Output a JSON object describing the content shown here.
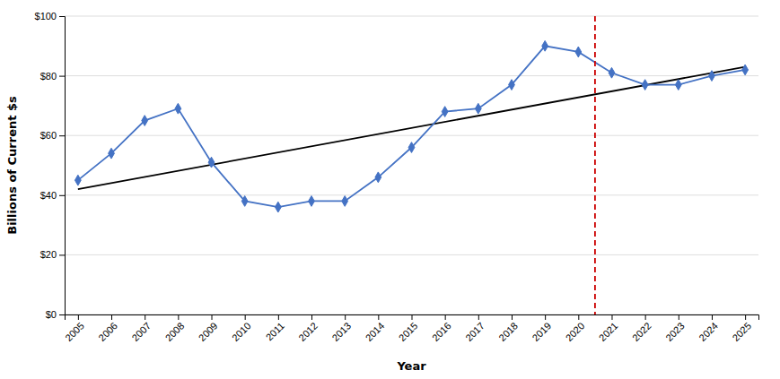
{
  "chart_data": {
    "type": "line",
    "xlabel": "Year",
    "ylabel": "Billions of Current $s",
    "series": [
      {
        "color": "#000000",
        "x": [
          2005,
          2025
        ],
        "values": [
          42,
          83
        ]
      },
      {
        "color": "#4472C4",
        "marker": "diamond",
        "x": [
          2005,
          2006,
          2007,
          2008,
          2009,
          2010,
          2011,
          2012,
          2013,
          2014,
          2015,
          2016,
          2017,
          2018,
          2019,
          2020,
          2021,
          2022,
          2023,
          2024,
          2025
        ],
        "values": [
          45,
          54,
          65,
          69,
          51,
          38,
          36,
          38,
          38,
          46,
          56,
          68,
          69,
          77,
          90,
          88,
          81,
          77,
          77,
          80,
          82
        ]
      }
    ],
    "vlines": [
      {
        "x": 2020.5,
        "color": "#CC0000",
        "line_style": "dashed"
      }
    ],
    "xlim": [
      2004.6,
      2025.4
    ],
    "xticks": [
      2005,
      2006,
      2007,
      2008,
      2009,
      2010,
      2011,
      2012,
      2013,
      2014,
      2015,
      2016,
      2017,
      2018,
      2019,
      2020,
      2021,
      2022,
      2023,
      2024,
      2025
    ],
    "ylim": [
      0,
      100
    ],
    "yticks": [
      {
        "value": 0,
        "label": "$0"
      },
      {
        "value": 20,
        "label": "$20"
      },
      {
        "value": 40,
        "label": "$40"
      },
      {
        "value": 60,
        "label": "$60"
      },
      {
        "value": 80,
        "label": "$80"
      },
      {
        "value": 100,
        "label": "$100"
      }
    ],
    "grid": "y"
  }
}
